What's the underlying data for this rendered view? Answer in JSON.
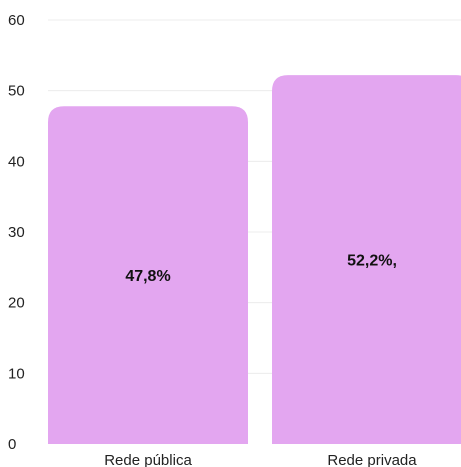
{
  "chart_data": {
    "type": "bar",
    "categories": [
      "Rede pública",
      "Rede privada"
    ],
    "values": [
      47.8,
      52.2
    ],
    "data_labels": [
      "47,8%",
      "52,2%,"
    ],
    "ylim": [
      0,
      60
    ],
    "yticks": [
      0,
      10,
      20,
      30,
      40,
      50,
      60
    ],
    "grid": true,
    "legend": "none",
    "title": "",
    "xlabel": "",
    "ylabel": "",
    "bar_color": "#e3a6f0"
  }
}
